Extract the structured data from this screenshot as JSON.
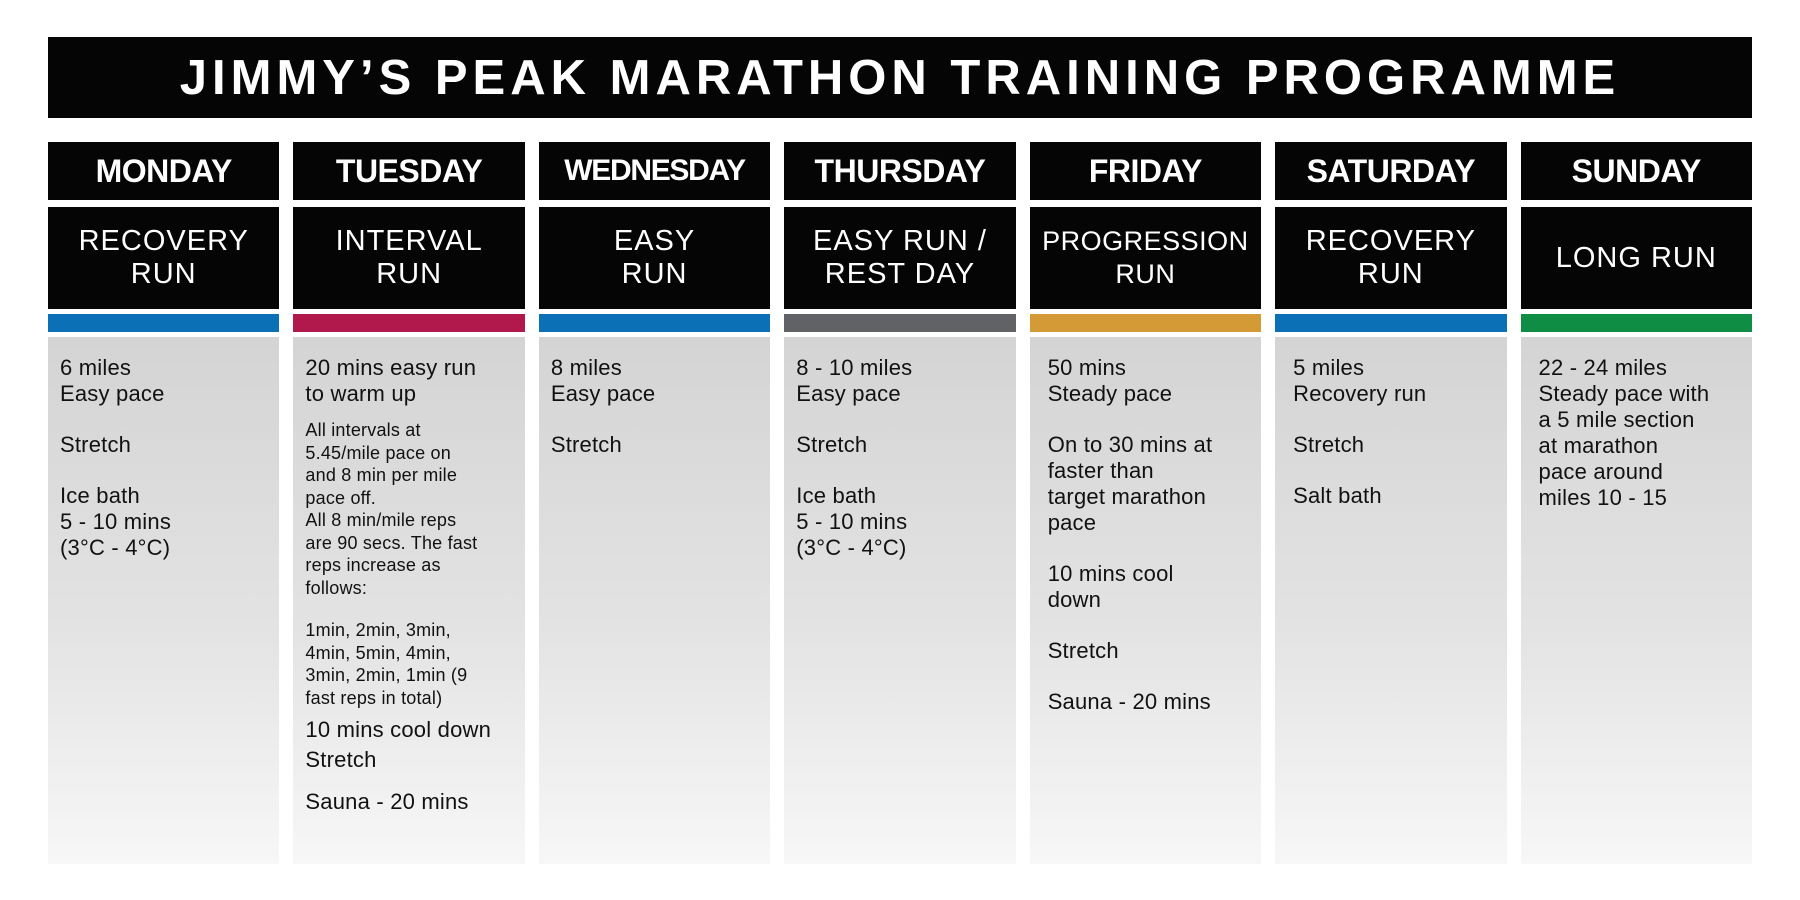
{
  "title": "JIMMY’S PEAK MARATHON TRAINING PROGRAMME",
  "colors": {
    "blue": "#0b70b5",
    "crimson": "#b1194c",
    "grey": "#616265",
    "gold": "#d39a35",
    "green": "#0f8d45",
    "black": "#050505"
  },
  "days": [
    {
      "name": "MONDAY",
      "workout": [
        "RECOVERY",
        "RUN"
      ],
      "details": [
        [
          "6 miles",
          "Easy pace"
        ],
        [
          "Stretch"
        ],
        [
          "Ice bath",
          "5 - 10 mins",
          "(3°C - 4°C)"
        ]
      ]
    },
    {
      "name": "TUESDAY",
      "workout": [
        "INTERVAL",
        "RUN"
      ],
      "details": [
        [
          "20 mins easy run",
          "to warm up"
        ],
        [
          "All intervals at",
          "5.45/mile pace on",
          "and 8 min per mile",
          "pace off.",
          "All 8 min/mile reps",
          "are 90 secs. The fast",
          "reps increase as",
          "follows:"
        ],
        [
          "1min, 2min, 3min,",
          "4min, 5min, 4min,",
          "3min, 2min, 1min (9",
          "fast reps in total)"
        ],
        [
          "10 mins cool down"
        ],
        [
          "Stretch"
        ],
        [
          "Sauna - 20 mins"
        ]
      ]
    },
    {
      "name": "WEDNESDAY",
      "workout": [
        "EASY",
        "RUN"
      ],
      "details": [
        [
          "8 miles",
          "Easy pace"
        ],
        [
          "Stretch"
        ]
      ]
    },
    {
      "name": "THURSDAY",
      "workout": [
        "EASY RUN /",
        "REST DAY"
      ],
      "details": [
        [
          "8 - 10 miles",
          "Easy pace"
        ],
        [
          "Stretch"
        ],
        [
          "Ice bath",
          "5 - 10 mins",
          "(3°C - 4°C)"
        ]
      ]
    },
    {
      "name": "FRIDAY",
      "workout": [
        "PROGRESSION",
        "RUN"
      ],
      "details": [
        [
          "50 mins",
          "Steady pace"
        ],
        [
          "On to 30 mins at",
          "faster than",
          "target marathon",
          "pace"
        ],
        [
          "10 mins cool",
          "down"
        ],
        [
          "Stretch"
        ],
        [
          "Sauna - 20 mins"
        ]
      ]
    },
    {
      "name": "SATURDAY",
      "workout": [
        "RECOVERY",
        "RUN"
      ],
      "details": [
        [
          "5 miles",
          "Recovery run"
        ],
        [
          "Stretch"
        ],
        [
          "Salt bath"
        ]
      ]
    },
    {
      "name": "SUNDAY",
      "workout": [
        "LONG RUN"
      ],
      "details": [
        [
          "22 - 24 miles",
          "Steady pace with",
          "a 5 mile section",
          "at marathon",
          "pace around",
          "miles 10 - 15"
        ]
      ]
    }
  ]
}
